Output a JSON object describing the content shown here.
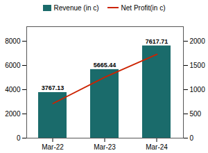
{
  "chart_data": {
    "type": "bar",
    "categories": [
      "Mar-22",
      "Mar-23",
      "Mar-24"
    ],
    "series": [
      {
        "name": "Revenue (in c)",
        "type": "bar",
        "color": "#1a6b6b",
        "values": [
          3767.13,
          5665.44,
          7617.71
        ],
        "data_labels": true
      },
      {
        "name": "Net Profit(in c)",
        "type": "line",
        "color": "#cc2200",
        "axis": "y2",
        "values": [
          714,
          1259,
          1731
        ]
      }
    ],
    "ylim": [
      0,
      9200
    ],
    "yticks": [
      0,
      2000,
      4000,
      6000,
      8000
    ],
    "y2lim": [
      0,
      2300
    ],
    "y2ticks": [
      0,
      500,
      1000,
      1500,
      2000
    ],
    "legend": "top",
    "grid": false
  }
}
